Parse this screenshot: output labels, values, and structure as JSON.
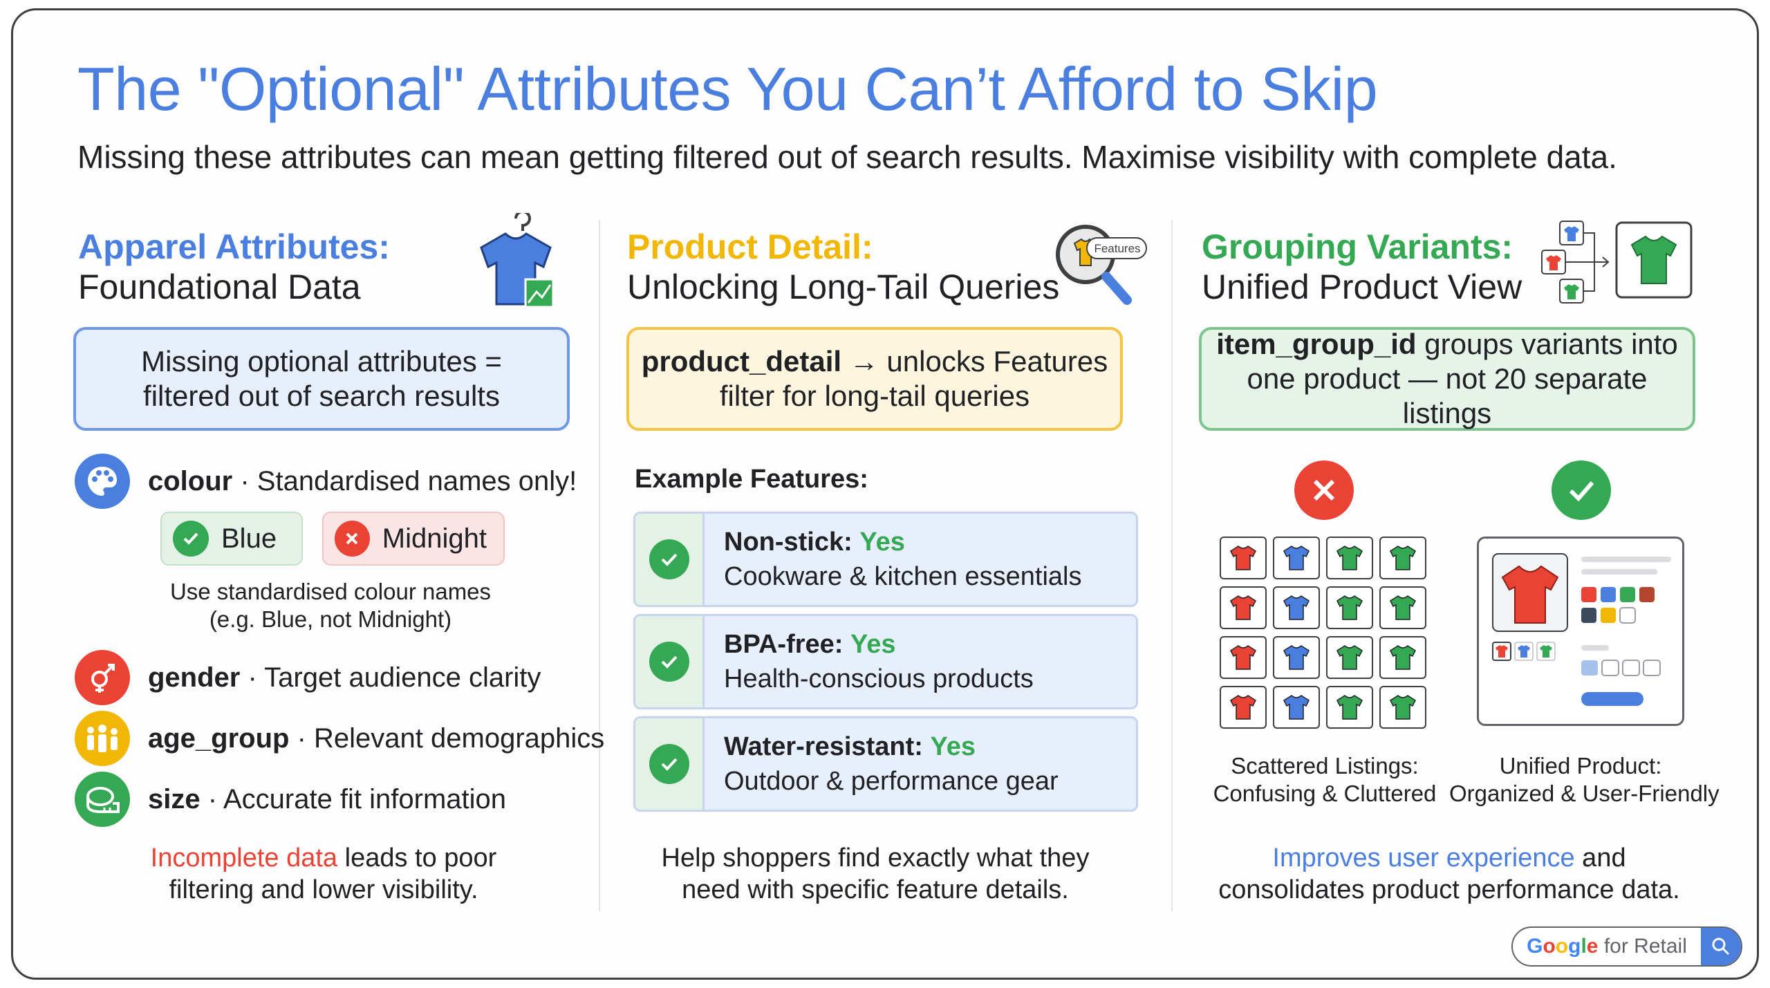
{
  "title": "The \"Optional\" Attributes You Can’t Afford to Skip",
  "subtitle": "Missing these attributes can mean getting filtered out of search results. Maximise visibility with complete data.",
  "colors": {
    "blue": "#4a7fe0",
    "yellow": "#f2b705",
    "green": "#34a853",
    "red": "#ea4335"
  },
  "apparel": {
    "heading": "Apparel Attributes:",
    "subheading": "Foundational Data",
    "icon": "tshirt-hanger-icon",
    "callout_line1": "Missing optional attributes =",
    "callout_line2": "filtered out of search results",
    "colour_name": "colour",
    "colour_desc": " · Standardised names only!",
    "good_chip": "Blue",
    "bad_chip": "Midnight",
    "note_line1": "Use standardised colour names",
    "note_line2": "(e.g. Blue, not Midnight)",
    "gender_name": "gender",
    "gender_desc": " · Target audience clarity",
    "age_name": "age_group",
    "age_desc": " · Relevant demographics",
    "size_name": "size",
    "size_desc": " · Accurate fit information",
    "foot_highlight": "Incomplete data",
    "foot_rest1": " leads to poor",
    "foot_line2": "filtering and lower visibility."
  },
  "product_detail": {
    "heading": "Product Detail:",
    "subheading": "Unlocking Long-Tail Queries",
    "icon_label": "Features",
    "callout_code": "product_detail",
    "callout_rest": " → unlocks Features",
    "callout_line2": "filter for long-tail queries",
    "example_label": "Example Features:",
    "features": [
      {
        "name": "Non-stick:",
        "value": "Yes",
        "desc": "Cookware & kitchen essentials"
      },
      {
        "name": "BPA-free:",
        "value": "Yes",
        "desc": "Health-conscious products"
      },
      {
        "name": "Water-resistant:",
        "value": "Yes",
        "desc": "Outdoor & performance gear"
      }
    ],
    "foot_line1": "Help shoppers find exactly what they",
    "foot_line2": "need with specific feature details."
  },
  "grouping": {
    "heading": "Grouping Variants:",
    "subheading": "Unified Product View",
    "callout_code": "item_group_id",
    "callout_rest": " groups variants into",
    "callout_line2": "one product — not 20 separate listings",
    "bad_caption_1": "Scattered Listings:",
    "bad_caption_2": "Confusing & Cluttered",
    "good_caption_1": "Unified Product:",
    "good_caption_2": "Organized & User-Friendly",
    "foot_highlight": "Improves user experience",
    "foot_rest1": " and",
    "foot_line2": "consolidates product performance data."
  },
  "badge": {
    "google": "Google",
    "rest": " for Retail"
  }
}
